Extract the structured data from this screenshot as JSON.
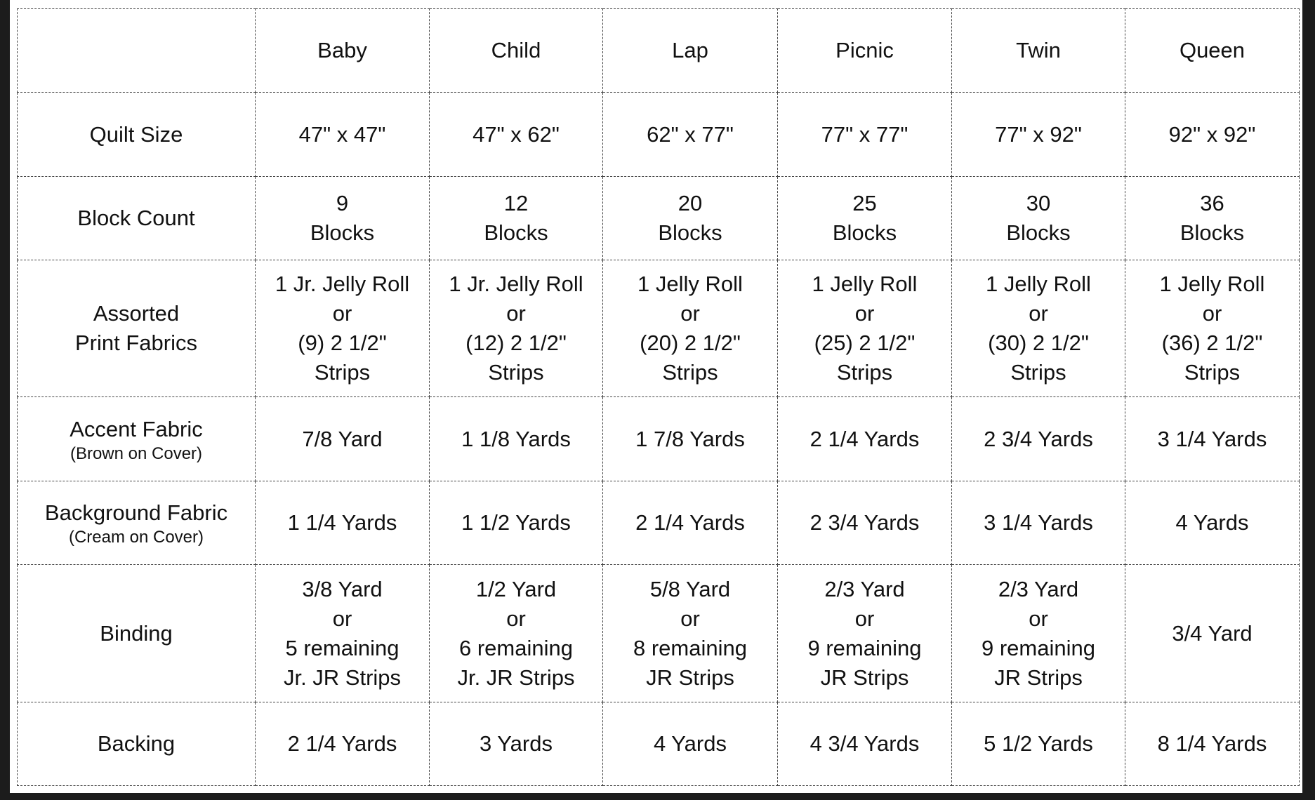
{
  "table": {
    "columns": [
      "Baby",
      "Child",
      "Lap",
      "Picnic",
      "Twin",
      "Queen"
    ],
    "rows": [
      {
        "label": [
          "Quilt Size"
        ],
        "cells": [
          [
            "47\" x 47\""
          ],
          [
            "47\" x 62\""
          ],
          [
            "62\" x 77\""
          ],
          [
            "77\" x 77\""
          ],
          [
            "77\" x 92\""
          ],
          [
            "92\" x 92\""
          ]
        ]
      },
      {
        "label": [
          "Block Count"
        ],
        "cells": [
          [
            "9",
            "Blocks"
          ],
          [
            "12",
            "Blocks"
          ],
          [
            "20",
            "Blocks"
          ],
          [
            "25",
            "Blocks"
          ],
          [
            "30",
            "Blocks"
          ],
          [
            "36",
            "Blocks"
          ]
        ]
      },
      {
        "label": [
          "Assorted",
          "Print Fabrics"
        ],
        "cells": [
          [
            "1 Jr. Jelly Roll",
            "or",
            "(9) 2 1/2\"",
            "Strips"
          ],
          [
            "1 Jr. Jelly Roll",
            "or",
            "(12) 2 1/2\"",
            "Strips"
          ],
          [
            "1 Jelly Roll",
            "or",
            "(20) 2 1/2\"",
            "Strips"
          ],
          [
            "1 Jelly Roll",
            "or",
            "(25) 2 1/2\"",
            "Strips"
          ],
          [
            "1 Jelly Roll",
            "or",
            "(30) 2 1/2\"",
            "Strips"
          ],
          [
            "1 Jelly Roll",
            "or",
            "(36) 2 1/2\"",
            "Strips"
          ]
        ]
      },
      {
        "label": [
          "Accent Fabric"
        ],
        "note": "(Brown on Cover)",
        "cells": [
          [
            "7/8 Yard"
          ],
          [
            "1 1/8 Yards"
          ],
          [
            "1 7/8 Yards"
          ],
          [
            "2 1/4 Yards"
          ],
          [
            "2 3/4 Yards"
          ],
          [
            "3 1/4 Yards"
          ]
        ]
      },
      {
        "label": [
          "Background Fabric"
        ],
        "note": "(Cream on Cover)",
        "cells": [
          [
            "1 1/4 Yards"
          ],
          [
            "1 1/2 Yards"
          ],
          [
            "2 1/4 Yards"
          ],
          [
            "2 3/4 Yards"
          ],
          [
            "3 1/4 Yards"
          ],
          [
            "4 Yards"
          ]
        ]
      },
      {
        "label": [
          "Binding"
        ],
        "cells": [
          [
            "3/8 Yard",
            "or",
            "5 remaining",
            "Jr. JR Strips"
          ],
          [
            "1/2 Yard",
            "or",
            "6 remaining",
            "Jr. JR Strips"
          ],
          [
            "5/8 Yard",
            "or",
            "8 remaining",
            "JR Strips"
          ],
          [
            "2/3 Yard",
            "or",
            "9 remaining",
            "JR Strips"
          ],
          [
            "2/3 Yard",
            "or",
            "9 remaining",
            "JR Strips"
          ],
          [
            "3/4 Yard"
          ]
        ]
      },
      {
        "label": [
          "Backing"
        ],
        "cells": [
          [
            "2 1/4 Yards"
          ],
          [
            "3 Yards"
          ],
          [
            "4 Yards"
          ],
          [
            "4 3/4 Yards"
          ],
          [
            "5 1/2 Yards"
          ],
          [
            "8 1/4 Yards"
          ]
        ]
      }
    ]
  }
}
